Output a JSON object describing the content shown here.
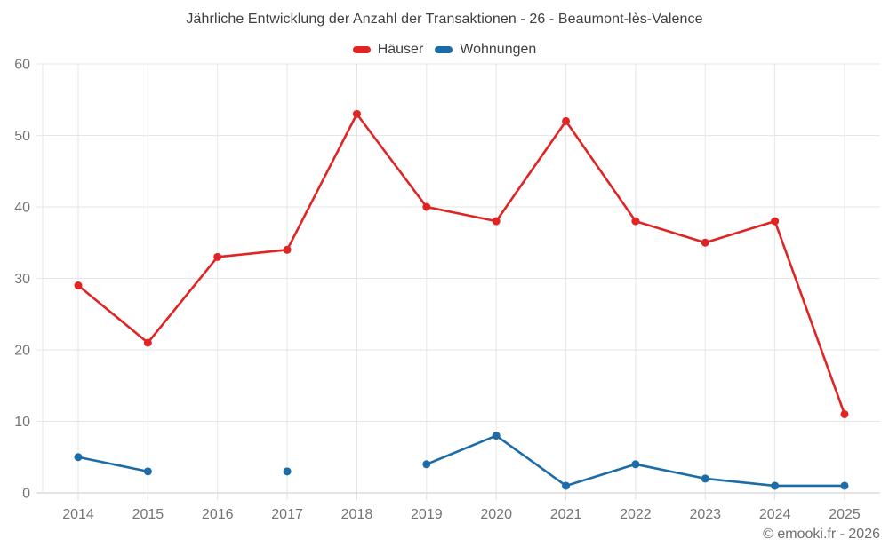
{
  "title": "Jährliche Entwicklung der Anzahl der Transaktionen - 26 - Beaumont-lès-Valence",
  "footer": "© emooki.fr - 2026",
  "legend": [
    {
      "label": "Häuser",
      "color": "#e02424"
    },
    {
      "label": "Wohnungen",
      "color": "#1b6ca8"
    }
  ],
  "colors": {
    "grid": "#e6e6e6",
    "axis": "#c9c9c9",
    "tick": "#dedede",
    "tick_label": "#757575",
    "title_text": "#3f3f3f",
    "footer_text": "#6e6e6e",
    "background": "#ffffff"
  },
  "chart_data": {
    "type": "line",
    "title": "Jährliche Entwicklung der Anzahl der Transaktionen - 26 - Beaumont-lès-Valence",
    "x": [
      2014,
      2015,
      2016,
      2017,
      2018,
      2019,
      2020,
      2021,
      2022,
      2023,
      2024,
      2025
    ],
    "series": [
      {
        "name": "Häuser",
        "key": "hauser",
        "color": "#e02424",
        "values": [
          29,
          21,
          33,
          34,
          53,
          40,
          38,
          52,
          38,
          35,
          38,
          11
        ]
      },
      {
        "name": "Wohnungen",
        "key": "wohnungen",
        "color": "#1b6ca8",
        "values": [
          5,
          3,
          null,
          3,
          null,
          4,
          8,
          1,
          4,
          2,
          1,
          1
        ]
      }
    ],
    "xlabel": "",
    "ylabel": "",
    "ylim": [
      0,
      60
    ],
    "yticks": [
      0,
      10,
      20,
      30,
      40,
      50,
      60
    ],
    "grid": true,
    "legend_position": "top"
  }
}
